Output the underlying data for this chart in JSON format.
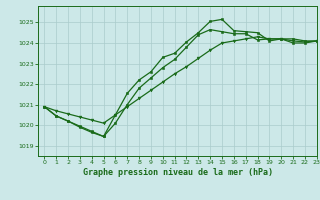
{
  "title": "Graphe pression niveau de la mer (hPa)",
  "background_color": "#cce8e8",
  "grid_color": "#aacccc",
  "line_color": "#1a6b1a",
  "xlim": [
    -0.5,
    23
  ],
  "ylim": [
    1018.5,
    1025.8
  ],
  "yticks": [
    1019,
    1020,
    1021,
    1022,
    1023,
    1024,
    1025
  ],
  "xticks": [
    0,
    1,
    2,
    3,
    4,
    5,
    6,
    7,
    8,
    9,
    10,
    11,
    12,
    13,
    14,
    15,
    16,
    17,
    18,
    19,
    20,
    21,
    22,
    23
  ],
  "series1": {
    "x": [
      0,
      1,
      2,
      3,
      4,
      5,
      6,
      7,
      8,
      9,
      10,
      11,
      12,
      13,
      14,
      15,
      16,
      17,
      18,
      19,
      20,
      21,
      22,
      23
    ],
    "y": [
      1020.9,
      1020.45,
      1020.2,
      1019.9,
      1019.65,
      1019.45,
      1020.1,
      1021.0,
      1021.8,
      1022.3,
      1022.8,
      1023.2,
      1023.8,
      1024.4,
      1024.65,
      1024.55,
      1024.45,
      1024.45,
      1024.15,
      1024.2,
      1024.2,
      1024.0,
      1024.0,
      1024.1
    ]
  },
  "series2": {
    "x": [
      0,
      1,
      2,
      3,
      4,
      5,
      6,
      7,
      8,
      9,
      10,
      11,
      12,
      13,
      14,
      15,
      16,
      17,
      18,
      19,
      20,
      21,
      22,
      23
    ],
    "y": [
      1020.9,
      1020.45,
      1020.2,
      1019.95,
      1019.7,
      1019.45,
      1020.5,
      1021.55,
      1022.2,
      1022.6,
      1023.3,
      1023.5,
      1024.05,
      1024.5,
      1025.05,
      1025.15,
      1024.6,
      1024.55,
      1024.5,
      1024.1,
      1024.2,
      1024.2,
      1024.1,
      1024.1
    ]
  },
  "series3": {
    "x": [
      0,
      1,
      2,
      3,
      4,
      5,
      6,
      7,
      8,
      9,
      10,
      11,
      12,
      13,
      14,
      15,
      16,
      17,
      18,
      19,
      20,
      21,
      22,
      23
    ],
    "y": [
      1020.9,
      1020.7,
      1020.55,
      1020.4,
      1020.25,
      1020.1,
      1020.5,
      1020.9,
      1021.3,
      1021.7,
      1022.1,
      1022.5,
      1022.85,
      1023.25,
      1023.65,
      1024.0,
      1024.1,
      1024.2,
      1024.3,
      1024.2,
      1024.2,
      1024.1,
      1024.05,
      1024.1
    ]
  }
}
